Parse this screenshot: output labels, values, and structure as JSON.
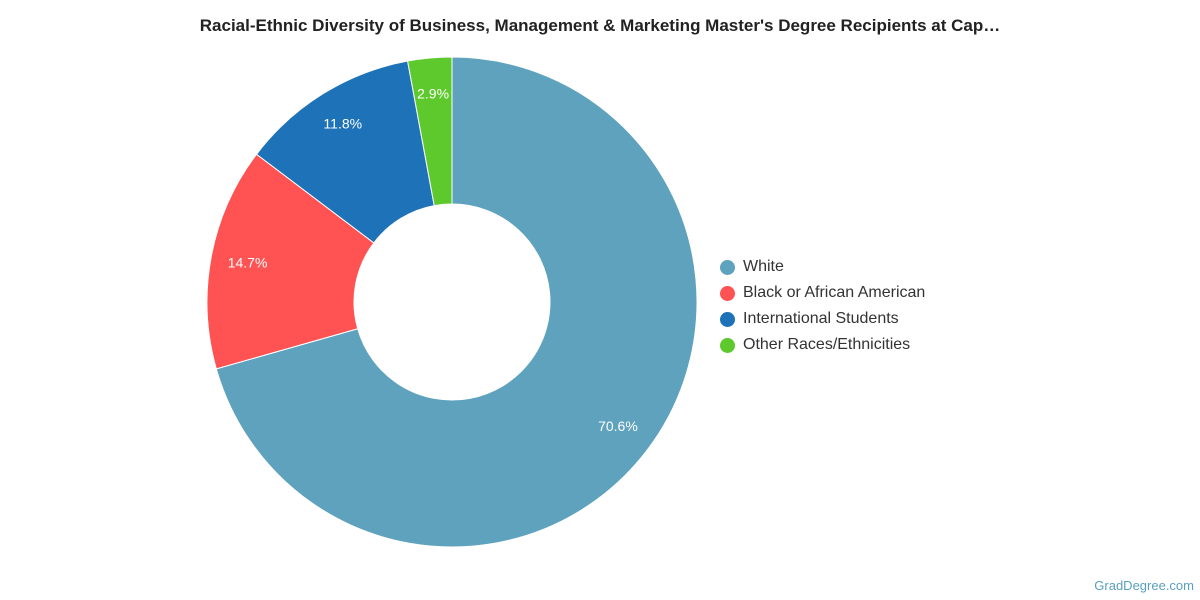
{
  "chart_data": {
    "type": "pie",
    "variant": "donut",
    "title": "Racial-Ethnic Diversity of Business, Management & Marketing Master's Degree Recipients at Cap…",
    "legend_position": "right",
    "slices": [
      {
        "name": "White",
        "value": 70.6,
        "label": "70.6%",
        "color": "#5ea2be"
      },
      {
        "name": "Black or African American",
        "value": 14.7,
        "label": "14.7%",
        "color": "#ff5252"
      },
      {
        "name": "International Students",
        "value": 11.8,
        "label": "11.8%",
        "color": "#1e73b8"
      },
      {
        "name": "Other Races/Ethnicities",
        "value": 2.9,
        "label": "2.9%",
        "color": "#5ec92c"
      }
    ]
  },
  "credit": {
    "text": "GradDegree.com"
  }
}
